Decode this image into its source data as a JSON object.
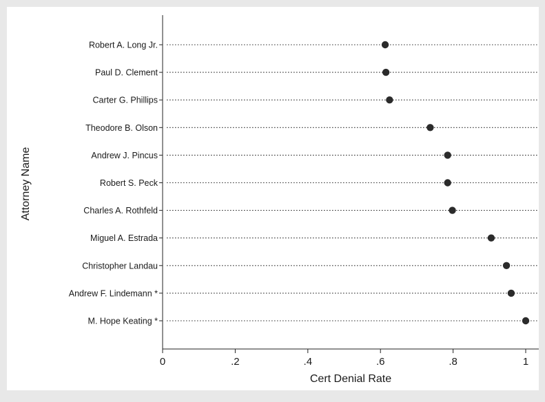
{
  "chart_data": {
    "type": "scatter",
    "subtype": "dot-plot",
    "title": "",
    "xlabel": "Cert Denial Rate",
    "ylabel": "Attorney Name",
    "xlim": [
      0,
      1
    ],
    "x_ticks": [
      0,
      0.2,
      0.4,
      0.6,
      0.8,
      1
    ],
    "x_tick_labels": [
      "0",
      ".2",
      ".4",
      ".6",
      ".8",
      "1"
    ],
    "grid": "dotted horizontal guide lines per category",
    "legend": "none",
    "marker_color": "#2b2b2b",
    "categories": [
      "Robert A. Long Jr.",
      "Paul D. Clement",
      "Carter G. Phillips",
      "Theodore B. Olson",
      "Andrew J. Pincus",
      "Robert S. Peck",
      "Charles A. Rothfeld",
      "Miguel A. Estrada",
      "Christopher Landau",
      "Andrew F. Lindemann *",
      "M. Hope Keating *"
    ],
    "values": [
      0.613,
      0.615,
      0.625,
      0.737,
      0.785,
      0.785,
      0.798,
      0.905,
      0.947,
      0.96,
      1.0
    ]
  }
}
